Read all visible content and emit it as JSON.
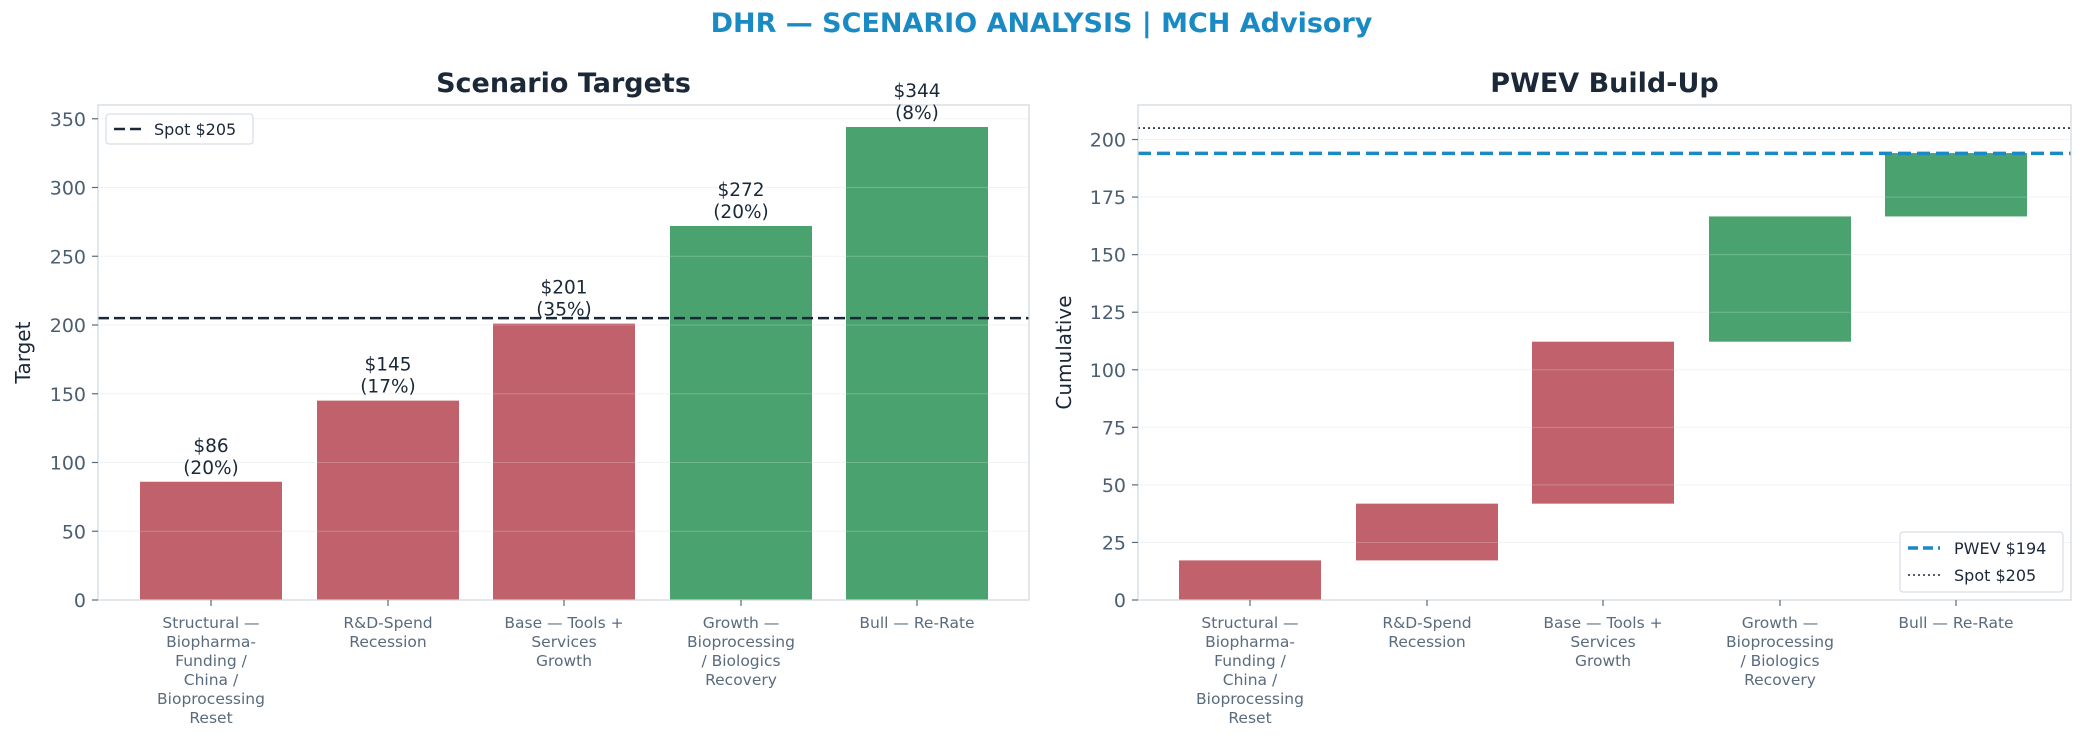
{
  "title": "DHR — SCENARIO ANALYSIS | MCH Advisory",
  "colors": {
    "bear": "#c0616b",
    "bull": "#4aa36f",
    "pwev": "#1a8ac4",
    "spot": "#1b2838",
    "title": "#1a8ac4"
  },
  "chart_data": [
    {
      "type": "bar",
      "title": "Scenario Targets",
      "ylabel": "Target",
      "xlabel": "",
      "ylim": [
        0,
        360
      ],
      "yticks": [
        "0",
        "50",
        "100",
        "150",
        "200",
        "250",
        "300",
        "350"
      ],
      "grid": true,
      "categories": [
        "Structural — Biopharma- Funding / China / Bioprocessing Reset",
        "R&D-Spend Recession",
        "Base — Tools + Services Growth",
        "Growth — Bioprocessing / Biologics Recovery",
        "Bull — Re-Rate"
      ],
      "category_lines": [
        [
          "Structural —",
          "Biopharma-",
          "Funding /",
          "China /",
          "Bioprocessing",
          "Reset"
        ],
        [
          "R&D-Spend",
          "Recession"
        ],
        [
          "Base — Tools +",
          "Services",
          "Growth"
        ],
        [
          "Growth —",
          "Bioprocessing",
          "/ Biologics",
          "Recovery"
        ],
        [
          "Bull — Re-Rate"
        ]
      ],
      "values": [
        86,
        145,
        201,
        272,
        344
      ],
      "probabilities": [
        0.2,
        0.17,
        0.35,
        0.2,
        0.08
      ],
      "value_labels": [
        "$86",
        "$145",
        "$201",
        "$272",
        "$344"
      ],
      "probability_labels": [
        "(20%)",
        "(17%)",
        "(35%)",
        "(20%)",
        "(8%)"
      ],
      "bar_colors": [
        "bear",
        "bear",
        "bear",
        "bull",
        "bull"
      ],
      "reference_lines": [
        {
          "name": "Spot $205",
          "value": 205,
          "style": "dashed"
        }
      ],
      "legend": {
        "placement": "top-left",
        "entries": [
          "Spot $205"
        ]
      }
    },
    {
      "type": "waterfall",
      "title": "PWEV Build-Up",
      "ylabel": "Cumulative",
      "xlabel": "",
      "ylim": [
        0,
        215
      ],
      "yticks": [
        "0",
        "25",
        "50",
        "75",
        "100",
        "125",
        "150",
        "175",
        "200"
      ],
      "grid": true,
      "categories": [
        "Structural — Biopharma- Funding / China / Bioprocessing Reset",
        "R&D-Spend Recession",
        "Base — Tools + Services Growth",
        "Growth — Bioprocessing / Biologics Recovery",
        "Bull — Re-Rate"
      ],
      "category_lines": [
        [
          "Structural —",
          "Biopharma-",
          "Funding /",
          "China /",
          "Bioprocessing",
          "Reset"
        ],
        [
          "R&D-Spend",
          "Recession"
        ],
        [
          "Base — Tools +",
          "Services",
          "Growth"
        ],
        [
          "Growth —",
          "Bioprocessing",
          "/ Biologics",
          "Recovery"
        ],
        [
          "Bull — Re-Rate"
        ]
      ],
      "increments": [
        17.2,
        24.65,
        70.35,
        54.4,
        27.52
      ],
      "cumulative": [
        17.2,
        41.85,
        112.2,
        166.6,
        194.12
      ],
      "bar_colors": [
        "bear",
        "bear",
        "bear",
        "bull",
        "bull"
      ],
      "reference_lines": [
        {
          "name": "PWEV $194",
          "value": 194,
          "style": "dashed"
        },
        {
          "name": "Spot $205",
          "value": 205,
          "style": "dotted"
        }
      ],
      "legend": {
        "placement": "bottom-right",
        "entries": [
          "PWEV $194",
          "Spot $205"
        ]
      }
    }
  ]
}
